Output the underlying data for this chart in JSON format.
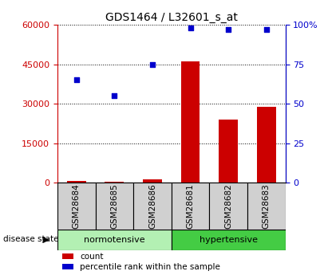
{
  "title": "GDS1464 / L32601_s_at",
  "samples": [
    "GSM28684",
    "GSM28685",
    "GSM28686",
    "GSM28681",
    "GSM28682",
    "GSM28683"
  ],
  "groups": [
    {
      "name": "normotensive",
      "indices": [
        0,
        1,
        2
      ],
      "color": "#b3f0b3"
    },
    {
      "name": "hypertensive",
      "indices": [
        3,
        4,
        5
      ],
      "color": "#44cc44"
    }
  ],
  "count_values": [
    800,
    300,
    1200,
    46000,
    24000,
    29000
  ],
  "percentile_values": [
    65,
    55,
    75,
    98,
    97,
    97
  ],
  "count_color": "#cc0000",
  "percentile_color": "#0000cc",
  "left_ylim": [
    0,
    60000
  ],
  "left_yticks": [
    0,
    15000,
    30000,
    45000,
    60000
  ],
  "right_ylim": [
    0,
    100
  ],
  "right_yticks": [
    0,
    25,
    50,
    75,
    100
  ],
  "right_yticklabels": [
    "0",
    "25",
    "50",
    "75",
    "100%"
  ],
  "bar_width": 0.5,
  "disease_state_label": "disease state",
  "legend_items": [
    {
      "label": "count",
      "color": "#cc0000"
    },
    {
      "label": "percentile rank within the sample",
      "color": "#0000cc"
    }
  ],
  "tick_label_color_left": "#cc0000",
  "tick_label_color_right": "#0000cc",
  "grid_color": "black",
  "bg_color": "#ffffff",
  "panel_bg": "#d0d0d0"
}
